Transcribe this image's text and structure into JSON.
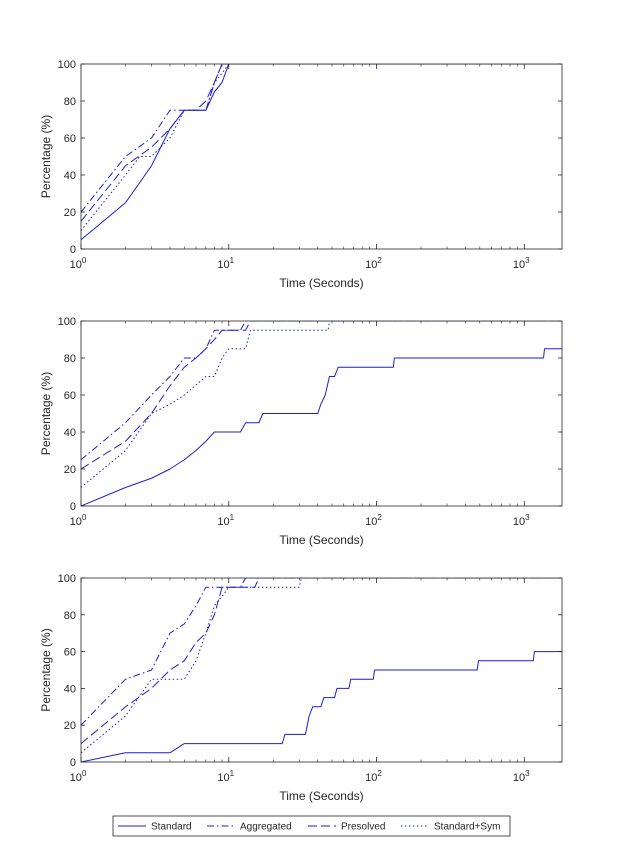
{
  "colors": {
    "series": "#1f1fd0",
    "axis": "#262626",
    "background": "#ffffff"
  },
  "legend": {
    "placement": "bottom-center",
    "entries": [
      {
        "name": "Standard",
        "dash": "solid"
      },
      {
        "name": "Aggregated",
        "dash": "dash-dot"
      },
      {
        "name": "Presolved",
        "dash": "dashed"
      },
      {
        "name": "Standard+Sym",
        "dash": "dotted"
      }
    ]
  },
  "chart_data": [
    {
      "type": "line",
      "xlabel": "Time (Seconds)",
      "ylabel": "Percentage (%)",
      "xscale": "log",
      "xlim": [
        1,
        1800
      ],
      "ylim": [
        0,
        100
      ],
      "xticks": [
        {
          "v": 1,
          "exp": "0"
        },
        {
          "v": 10,
          "exp": "1"
        },
        {
          "v": 100,
          "exp": "2"
        },
        {
          "v": 1000,
          "exp": "3"
        }
      ],
      "yticks": [
        0,
        20,
        40,
        60,
        80,
        100
      ],
      "series": [
        {
          "name": "Standard",
          "points": [
            [
              1,
              5
            ],
            [
              2,
              25
            ],
            [
              3,
              45
            ],
            [
              4,
              65
            ],
            [
              5,
              75
            ],
            [
              7,
              75
            ],
            [
              8,
              85
            ],
            [
              9,
              90
            ],
            [
              10,
              100
            ],
            [
              1800,
              100
            ]
          ]
        },
        {
          "name": "Aggregated",
          "points": [
            [
              1,
              20
            ],
            [
              2,
              50
            ],
            [
              3,
              60
            ],
            [
              4,
              75
            ],
            [
              7,
              75
            ],
            [
              8,
              90
            ],
            [
              9,
              100
            ],
            [
              1800,
              100
            ]
          ]
        },
        {
          "name": "Presolved",
          "points": [
            [
              1,
              15
            ],
            [
              2,
              45
            ],
            [
              3,
              55
            ],
            [
              4,
              65
            ],
            [
              5,
              75
            ],
            [
              6,
              75
            ],
            [
              7,
              80
            ],
            [
              8,
              90
            ],
            [
              9,
              100
            ],
            [
              1800,
              100
            ]
          ]
        },
        {
          "name": "Standard+Sym",
          "points": [
            [
              1,
              10
            ],
            [
              2,
              40
            ],
            [
              2.5,
              50
            ],
            [
              3,
              50
            ],
            [
              4,
              60
            ],
            [
              5,
              75
            ],
            [
              7,
              75
            ],
            [
              8,
              90
            ],
            [
              9,
              95
            ],
            [
              10,
              100
            ],
            [
              1800,
              100
            ]
          ]
        }
      ]
    },
    {
      "type": "line",
      "xlabel": "Time (Seconds)",
      "ylabel": "Percentage (%)",
      "xscale": "log",
      "xlim": [
        1,
        1800
      ],
      "ylim": [
        0,
        100
      ],
      "xticks": [
        {
          "v": 1,
          "exp": "0"
        },
        {
          "v": 10,
          "exp": "1"
        },
        {
          "v": 100,
          "exp": "2"
        },
        {
          "v": 1000,
          "exp": "3"
        }
      ],
      "yticks": [
        0,
        20,
        40,
        60,
        80,
        100
      ],
      "series": [
        {
          "name": "Standard",
          "points": [
            [
              1,
              0
            ],
            [
              2,
              10
            ],
            [
              3,
              15
            ],
            [
              4,
              20
            ],
            [
              5,
              25
            ],
            [
              6,
              30
            ],
            [
              7,
              35
            ],
            [
              8,
              40
            ],
            [
              12,
              40
            ],
            [
              13,
              45
            ],
            [
              16,
              45
            ],
            [
              17,
              50
            ],
            [
              40,
              50
            ],
            [
              42,
              55
            ],
            [
              45,
              60
            ],
            [
              48,
              70
            ],
            [
              52,
              70
            ],
            [
              55,
              75
            ],
            [
              130,
              75
            ],
            [
              132,
              80
            ],
            [
              1350,
              80
            ],
            [
              1370,
              85
            ],
            [
              1800,
              85
            ]
          ]
        },
        {
          "name": "Aggregated",
          "points": [
            [
              1,
              25
            ],
            [
              2,
              45
            ],
            [
              3,
              60
            ],
            [
              4,
              70
            ],
            [
              5,
              80
            ],
            [
              6,
              80
            ],
            [
              7,
              85
            ],
            [
              8,
              95
            ],
            [
              12,
              95
            ],
            [
              13,
              100
            ],
            [
              1800,
              100
            ]
          ]
        },
        {
          "name": "Presolved",
          "points": [
            [
              1,
              20
            ],
            [
              2,
              35
            ],
            [
              3,
              50
            ],
            [
              4,
              65
            ],
            [
              5,
              75
            ],
            [
              6,
              80
            ],
            [
              7,
              85
            ],
            [
              8,
              90
            ],
            [
              9,
              95
            ],
            [
              13,
              95
            ],
            [
              14,
              100
            ],
            [
              1800,
              100
            ]
          ]
        },
        {
          "name": "Standard+Sym",
          "points": [
            [
              1,
              10
            ],
            [
              2,
              30
            ],
            [
              3,
              50
            ],
            [
              4,
              55
            ],
            [
              5,
              60
            ],
            [
              7,
              70
            ],
            [
              8,
              70
            ],
            [
              9,
              80
            ],
            [
              10,
              85
            ],
            [
              13,
              85
            ],
            [
              14,
              95
            ],
            [
              47,
              95
            ],
            [
              48,
              100
            ],
            [
              1800,
              100
            ]
          ]
        }
      ]
    },
    {
      "type": "line",
      "xlabel": "Time (Seconds)",
      "ylabel": "Percentage (%)",
      "xscale": "log",
      "xlim": [
        1,
        1800
      ],
      "ylim": [
        0,
        100
      ],
      "xticks": [
        {
          "v": 1,
          "exp": "0"
        },
        {
          "v": 10,
          "exp": "1"
        },
        {
          "v": 100,
          "exp": "2"
        },
        {
          "v": 1000,
          "exp": "3"
        }
      ],
      "yticks": [
        0,
        20,
        40,
        60,
        80,
        100
      ],
      "series": [
        {
          "name": "Standard",
          "points": [
            [
              1,
              0
            ],
            [
              2,
              5
            ],
            [
              4,
              5
            ],
            [
              5,
              10
            ],
            [
              23,
              10
            ],
            [
              24,
              15
            ],
            [
              33,
              15
            ],
            [
              35,
              25
            ],
            [
              37,
              30
            ],
            [
              42,
              30
            ],
            [
              44,
              35
            ],
            [
              52,
              35
            ],
            [
              54,
              40
            ],
            [
              65,
              40
            ],
            [
              67,
              45
            ],
            [
              95,
              45
            ],
            [
              97,
              50
            ],
            [
              480,
              50
            ],
            [
              490,
              55
            ],
            [
              1150,
              55
            ],
            [
              1170,
              60
            ],
            [
              1800,
              60
            ]
          ]
        },
        {
          "name": "Aggregated",
          "points": [
            [
              1,
              20
            ],
            [
              2,
              45
            ],
            [
              3,
              50
            ],
            [
              4,
              70
            ],
            [
              5,
              75
            ],
            [
              6,
              85
            ],
            [
              7,
              95
            ],
            [
              12,
              95
            ],
            [
              13,
              100
            ],
            [
              1800,
              100
            ]
          ]
        },
        {
          "name": "Presolved",
          "points": [
            [
              1,
              10
            ],
            [
              2,
              30
            ],
            [
              3,
              40
            ],
            [
              4,
              50
            ],
            [
              5,
              55
            ],
            [
              6,
              65
            ],
            [
              7,
              70
            ],
            [
              8,
              80
            ],
            [
              9,
              95
            ],
            [
              15,
              95
            ],
            [
              16,
              100
            ],
            [
              1800,
              100
            ]
          ]
        },
        {
          "name": "Standard+Sym",
          "points": [
            [
              1,
              5
            ],
            [
              2,
              25
            ],
            [
              3,
              45
            ],
            [
              4,
              45
            ],
            [
              5,
              45
            ],
            [
              6,
              55
            ],
            [
              7,
              70
            ],
            [
              8,
              85
            ],
            [
              9,
              90
            ],
            [
              10,
              95
            ],
            [
              30,
              95
            ],
            [
              31,
              100
            ],
            [
              1800,
              100
            ]
          ]
        }
      ]
    }
  ]
}
